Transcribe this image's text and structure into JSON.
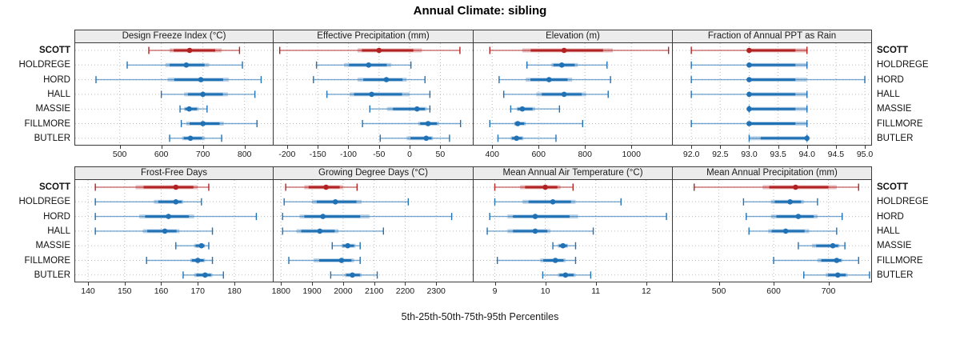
{
  "title": "Annual Climate: sibling",
  "caption": "5th-25th-50th-75th-95th Percentiles",
  "colors": {
    "highlight": "#B22222",
    "normal": "#2171B5",
    "grid": "#bbbbbb",
    "strip_bg": "#ececec",
    "border": "#3a3a3a"
  },
  "stations": [
    {
      "label": "SCOTT",
      "highlight": true
    },
    {
      "label": "HOLDREGE",
      "highlight": false
    },
    {
      "label": "HORD",
      "highlight": false
    },
    {
      "label": "HALL",
      "highlight": false
    },
    {
      "label": "MASSIE",
      "highlight": false
    },
    {
      "label": "FILLMORE",
      "highlight": false
    },
    {
      "label": "BUTLER",
      "highlight": false
    }
  ],
  "chart_data": {
    "type": "dotplot-percentile-segments",
    "percentiles": [
      "5th",
      "25th",
      "50th",
      "75th",
      "95th"
    ],
    "rows": [
      "SCOTT",
      "HOLDREGE",
      "HORD",
      "HALL",
      "MASSIE",
      "FILLMORE",
      "BUTLER"
    ],
    "legend_position": "none",
    "grid": "dotted both axes",
    "panels": [
      {
        "name": "Design Freeze Index (°C)",
        "row": 1,
        "xlim": [
          393,
          868
        ],
        "tick_values": [
          500,
          600,
          700,
          800
        ],
        "tick_labels": [
          "500",
          "600",
          "700",
          "800"
        ],
        "values": [
          [
            570,
            620,
            668,
            745,
            788
          ],
          [
            518,
            610,
            660,
            715,
            795
          ],
          [
            443,
            615,
            695,
            762,
            840
          ],
          [
            600,
            655,
            700,
            760,
            825
          ],
          [
            645,
            655,
            667,
            690,
            710
          ],
          [
            648,
            660,
            700,
            750,
            830
          ],
          [
            620,
            650,
            670,
            705,
            745
          ]
        ]
      },
      {
        "name": "Effective Precipitation (mm)",
        "row": 1,
        "xlim": [
          -222,
          103
        ],
        "tick_values": [
          -200,
          -150,
          -100,
          -50,
          0,
          50
        ],
        "tick_labels": [
          "-200",
          "-150",
          "-100",
          "-50",
          "0",
          "50"
        ],
        "values": [
          [
            -212,
            -85,
            -50,
            20,
            82
          ],
          [
            -152,
            -107,
            -67,
            -30,
            2
          ],
          [
            -157,
            -85,
            -38,
            -5,
            25
          ],
          [
            -135,
            -98,
            -62,
            0,
            33
          ],
          [
            -65,
            -37,
            12,
            28,
            33
          ],
          [
            -77,
            14,
            30,
            48,
            83
          ],
          [
            -48,
            -5,
            27,
            38,
            65
          ]
        ]
      },
      {
        "name": "Elevation (m)",
        "row": 1,
        "xlim": [
          320,
          1175
        ],
        "tick_values": [
          400,
          600,
          800,
          1000
        ],
        "tick_labels": [
          "400",
          "600",
          "800",
          "1000"
        ],
        "values": [
          [
            390,
            530,
            710,
            920,
            1160
          ],
          [
            550,
            655,
            700,
            770,
            895
          ],
          [
            430,
            545,
            645,
            745,
            910
          ],
          [
            450,
            590,
            710,
            805,
            900
          ],
          [
            480,
            505,
            530,
            585,
            690
          ],
          [
            390,
            495,
            510,
            545,
            790
          ],
          [
            425,
            480,
            505,
            535,
            675
          ]
        ]
      },
      {
        "name": "Fraction of Annual PPT as Rain",
        "row": 1,
        "xlim": [
          91.68,
          95.11
        ],
        "tick_values": [
          92.0,
          92.5,
          93.0,
          93.5,
          94.0,
          94.5,
          95.0
        ],
        "tick_labels": [
          "92.0",
          "92.5",
          "93.0",
          "93.5",
          "94.0",
          "94.5",
          "95.0"
        ],
        "values": [
          [
            92,
            93,
            93,
            94,
            94
          ],
          [
            92,
            93,
            93,
            94,
            94
          ],
          [
            92,
            93,
            93,
            94,
            95
          ],
          [
            92,
            93,
            93,
            94,
            94
          ],
          [
            93,
            93,
            93,
            94,
            94
          ],
          [
            92,
            93,
            93,
            94,
            94
          ],
          [
            93,
            93,
            94,
            94,
            94
          ]
        ]
      },
      {
        "name": "Frost-Free Days",
        "row": 2,
        "xlim": [
          136.5,
          190.5
        ],
        "tick_values": [
          140,
          150,
          160,
          170,
          180
        ],
        "tick_labels": [
          "140",
          "150",
          "160",
          "170",
          "180"
        ],
        "values": [
          [
            142,
            153,
            164,
            170,
            173
          ],
          [
            142,
            158,
            164,
            166,
            171
          ],
          [
            142,
            154,
            162,
            169,
            186
          ],
          [
            142,
            155,
            161,
            165,
            174
          ],
          [
            164,
            169,
            171,
            172,
            173
          ],
          [
            156,
            168,
            170,
            172,
            174
          ],
          [
            166,
            169,
            172,
            174,
            177
          ]
        ]
      },
      {
        "name": "Growing Degree Days (°C)",
        "row": 2,
        "xlim": [
          1776,
          2418
        ],
        "tick_values": [
          1800,
          1900,
          2000,
          2100,
          2200,
          2300
        ],
        "tick_labels": [
          "1800",
          "1900",
          "2000",
          "2100",
          "2200",
          "2300"
        ],
        "values": [
          [
            1815,
            1875,
            1945,
            2000,
            2045
          ],
          [
            1810,
            1900,
            1975,
            2060,
            2210
          ],
          [
            1805,
            1860,
            1935,
            2085,
            2350
          ],
          [
            1805,
            1850,
            1925,
            1985,
            2130
          ],
          [
            1965,
            1995,
            2015,
            2040,
            2055
          ],
          [
            1825,
            1905,
            1995,
            2035,
            2055
          ],
          [
            1960,
            2005,
            2030,
            2060,
            2110
          ]
        ]
      },
      {
        "name": "Mean Annual Air Temperature (°C)",
        "row": 2,
        "xlim": [
          8.58,
          12.51
        ],
        "tick_values": [
          9,
          10,
          11,
          12
        ],
        "tick_labels": [
          "9",
          "10",
          "11",
          "12"
        ],
        "values": [
          [
            9.0,
            9.5,
            10.0,
            10.3,
            10.55
          ],
          [
            9.0,
            9.55,
            10.15,
            10.6,
            11.5
          ],
          [
            8.9,
            9.25,
            9.8,
            10.65,
            12.4
          ],
          [
            8.85,
            9.25,
            9.8,
            10.1,
            10.95
          ],
          [
            10.15,
            10.25,
            10.35,
            10.45,
            10.6
          ],
          [
            9.05,
            9.9,
            10.2,
            10.4,
            10.6
          ],
          [
            9.95,
            10.25,
            10.4,
            10.6,
            10.9
          ]
        ]
      },
      {
        "name": "Mean Annual Precipitation (mm)",
        "row": 2,
        "xlim": [
          416,
          778
        ],
        "tick_values": [
          500,
          600,
          700
        ],
        "tick_labels": [
          "500",
          "600",
          "700"
        ],
        "values": [
          [
            455,
            580,
            640,
            715,
            755
          ],
          [
            545,
            595,
            630,
            655,
            680
          ],
          [
            550,
            595,
            645,
            680,
            725
          ],
          [
            555,
            590,
            622,
            665,
            715
          ],
          [
            645,
            670,
            708,
            720,
            730
          ],
          [
            600,
            680,
            715,
            725,
            755
          ],
          [
            655,
            695,
            717,
            735,
            775
          ]
        ]
      }
    ]
  }
}
